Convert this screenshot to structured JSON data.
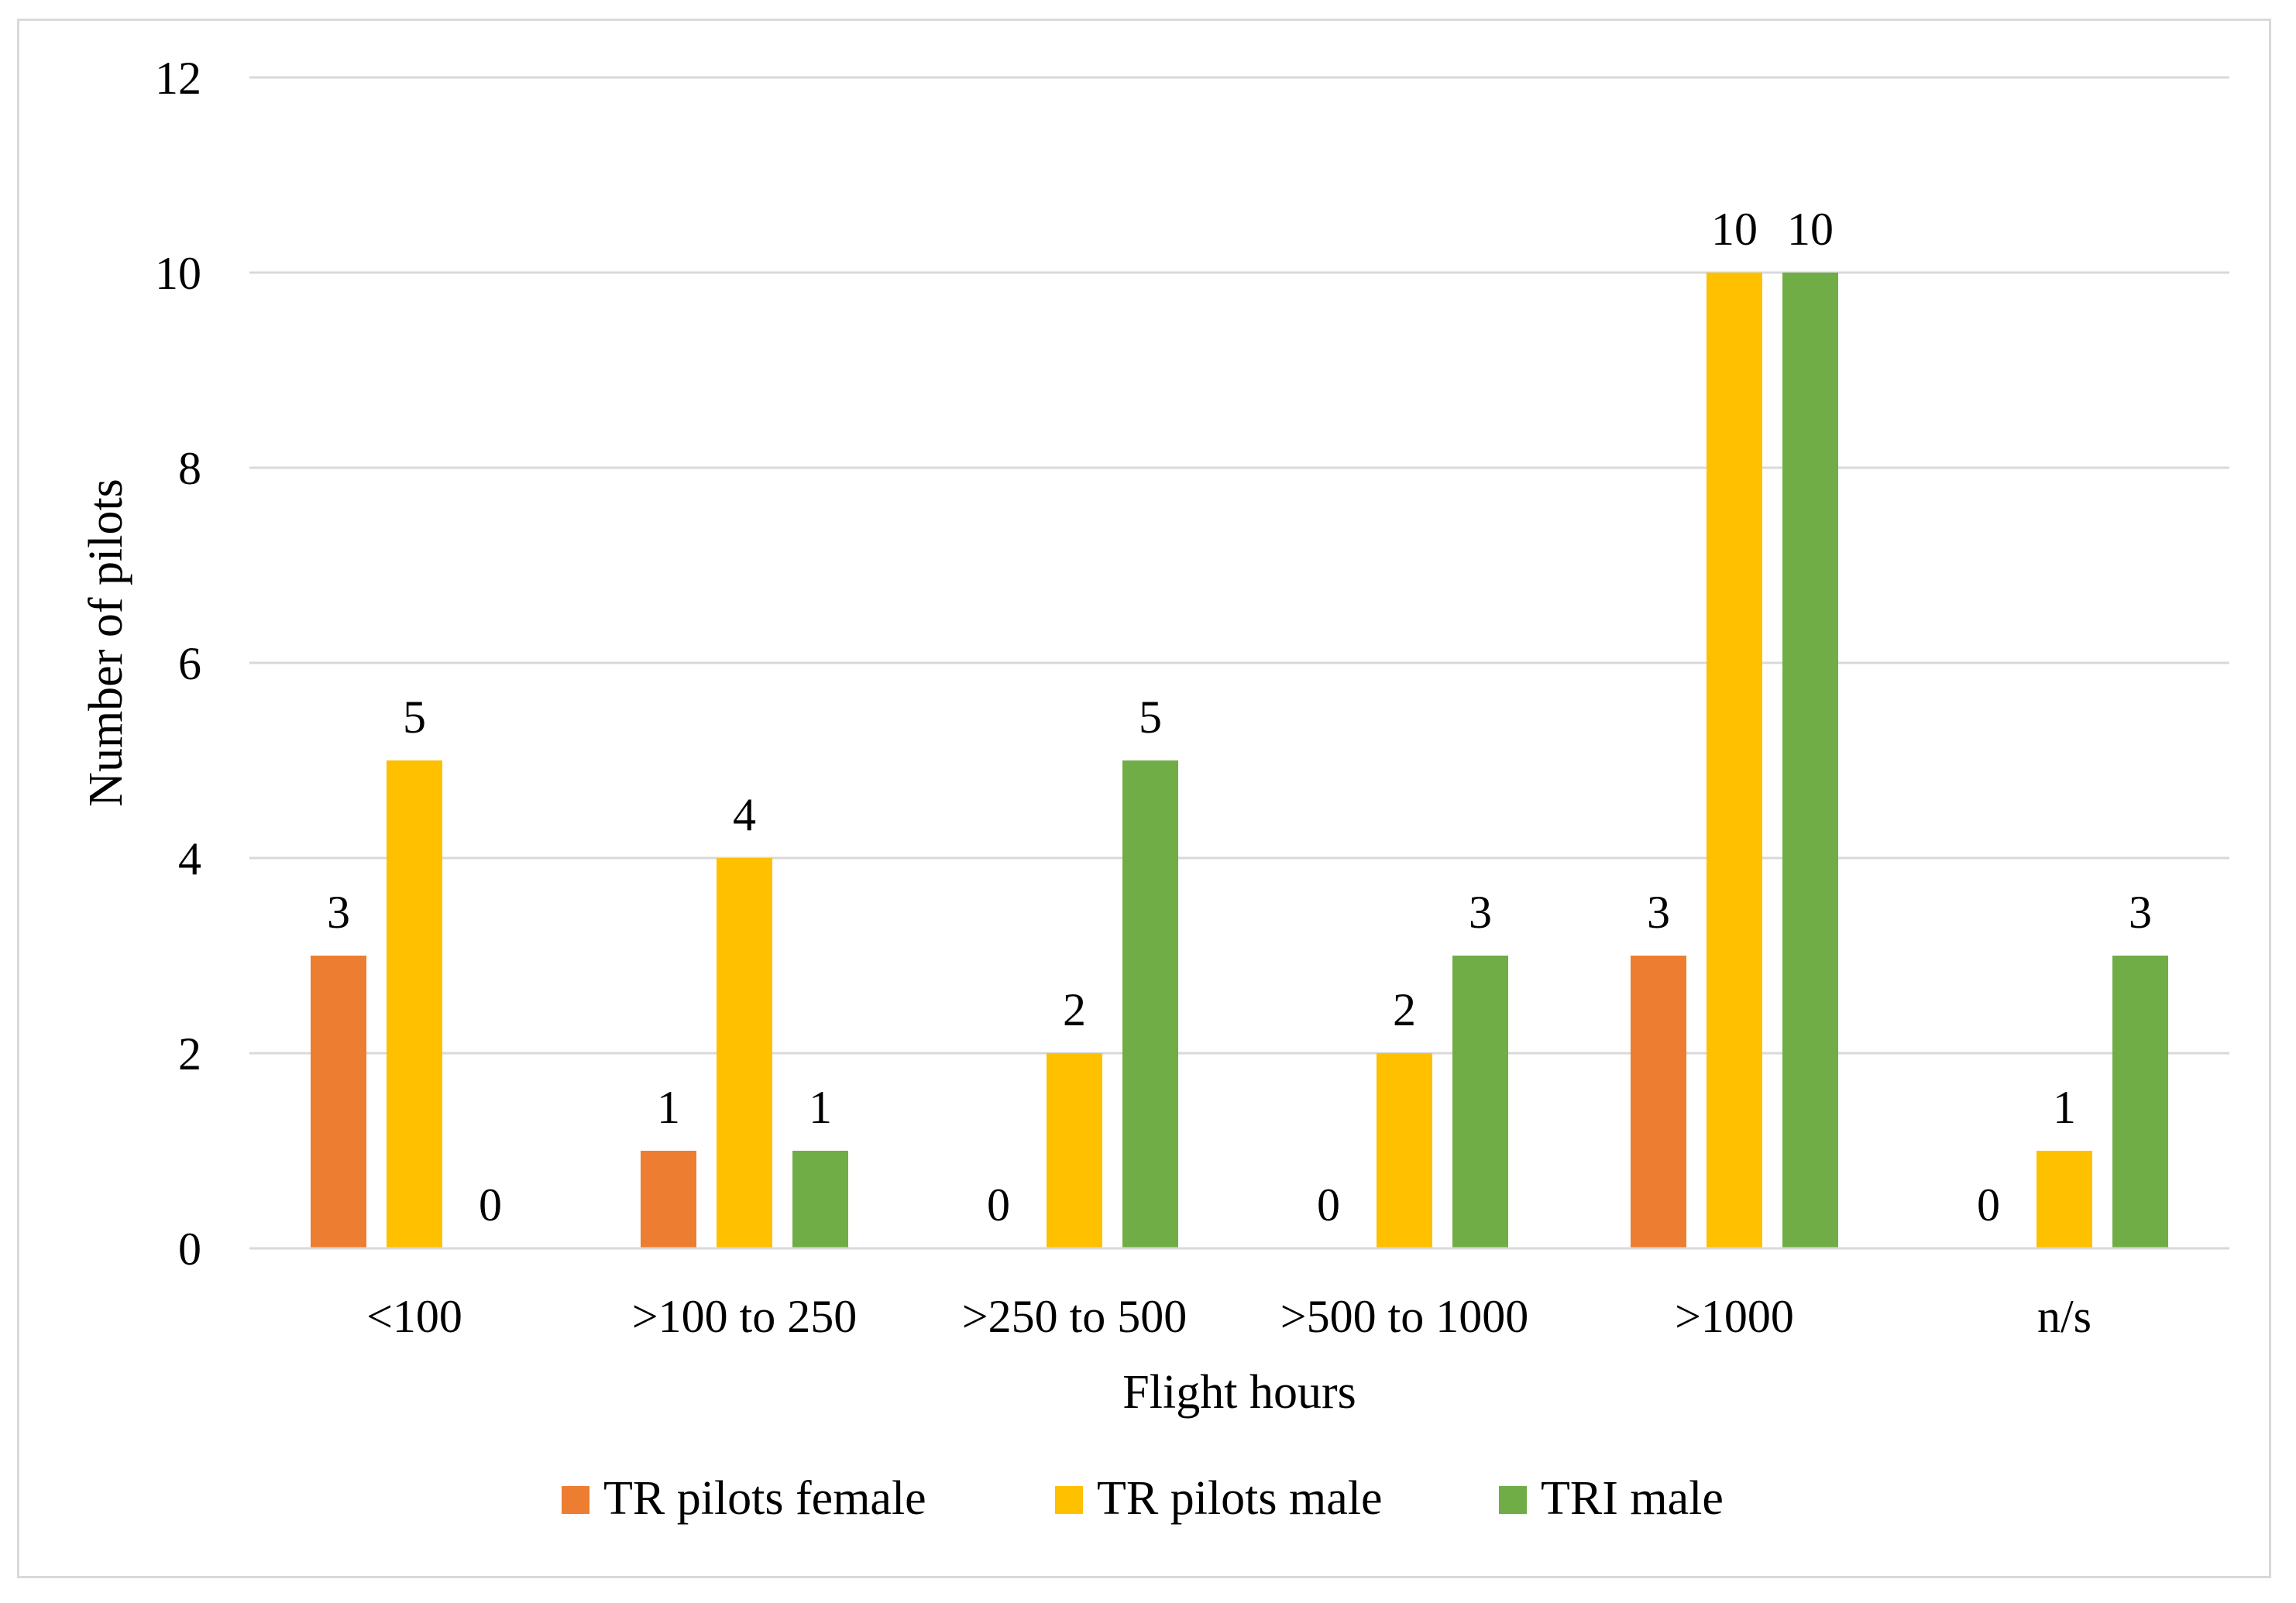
{
  "chart_data": {
    "type": "bar",
    "title": "",
    "xlabel": "Flight hours",
    "ylabel": "Number of pilots",
    "categories": [
      "<100",
      ">100 to 250",
      ">250 to 500",
      ">500 to 1000",
      ">1000",
      "n/s"
    ],
    "series": [
      {
        "name": "TR pilots female",
        "color": "#ed7d31",
        "values": [
          3,
          1,
          0,
          0,
          3,
          0
        ]
      },
      {
        "name": "TR pilots male",
        "color": "#ffc000",
        "values": [
          5,
          4,
          2,
          2,
          10,
          1
        ]
      },
      {
        "name": "TRI male",
        "color": "#70ad47",
        "values": [
          0,
          1,
          5,
          3,
          10,
          3
        ]
      }
    ],
    "ylim": [
      0,
      12
    ],
    "yticks": [
      0,
      2,
      4,
      6,
      8,
      10,
      12
    ],
    "grid": true,
    "legend": "bottom",
    "gridline_color": "#d9d9d9"
  }
}
